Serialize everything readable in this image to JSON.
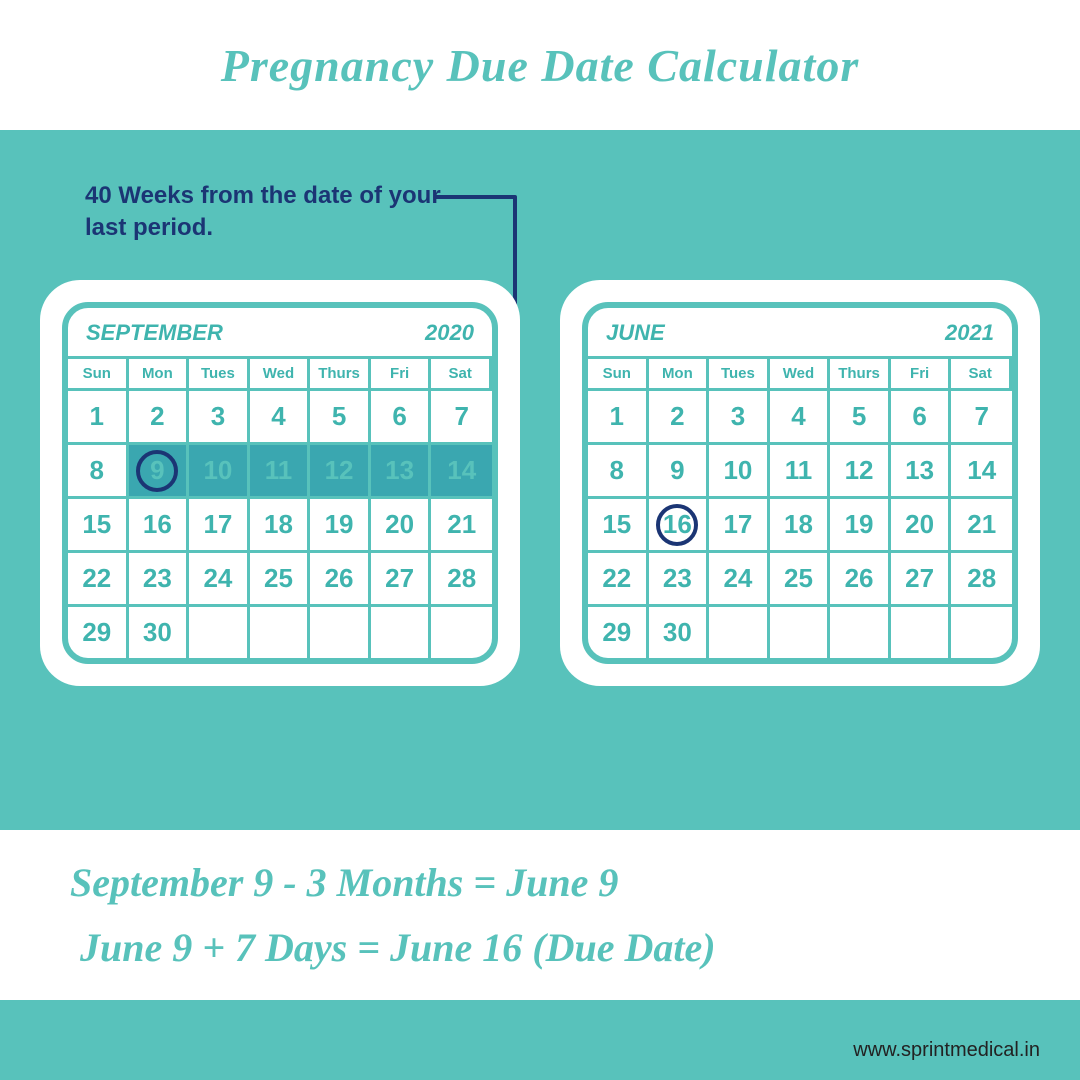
{
  "colors": {
    "teal": "#58c2bb",
    "teal_dark": "#3fb4ae",
    "highlight": "#3aa7b0",
    "navy": "#1b3574",
    "white": "#ffffff"
  },
  "title": "Pregnancy Due Date Calculator",
  "annotation": "40 Weeks from the date of your last period.",
  "dow": [
    "Sun",
    "Mon",
    "Tues",
    "Wed",
    "Thurs",
    "Fri",
    "Sat"
  ],
  "calendars": [
    {
      "month": "SEPTEMBER",
      "year": "2020",
      "days": [
        1,
        2,
        3,
        4,
        5,
        6,
        7,
        8,
        9,
        10,
        11,
        12,
        13,
        14,
        15,
        16,
        17,
        18,
        19,
        20,
        21,
        22,
        23,
        24,
        25,
        26,
        27,
        28,
        29,
        30,
        null,
        null,
        null,
        null,
        null
      ],
      "highlight_range": [
        9,
        14
      ],
      "circled": 9
    },
    {
      "month": "JUNE",
      "year": "2021",
      "days": [
        1,
        2,
        3,
        4,
        5,
        6,
        7,
        8,
        9,
        10,
        11,
        12,
        13,
        14,
        15,
        16,
        17,
        18,
        19,
        20,
        21,
        22,
        23,
        24,
        25,
        26,
        27,
        28,
        29,
        30,
        null,
        null,
        null,
        null,
        null
      ],
      "highlight_range": null,
      "circled": 16
    }
  ],
  "formula": [
    "September 9 - 3 Months = June 9",
    "June 9 + 7 Days = June 16 (Due Date)"
  ],
  "source": "www.sprintmedical.in"
}
